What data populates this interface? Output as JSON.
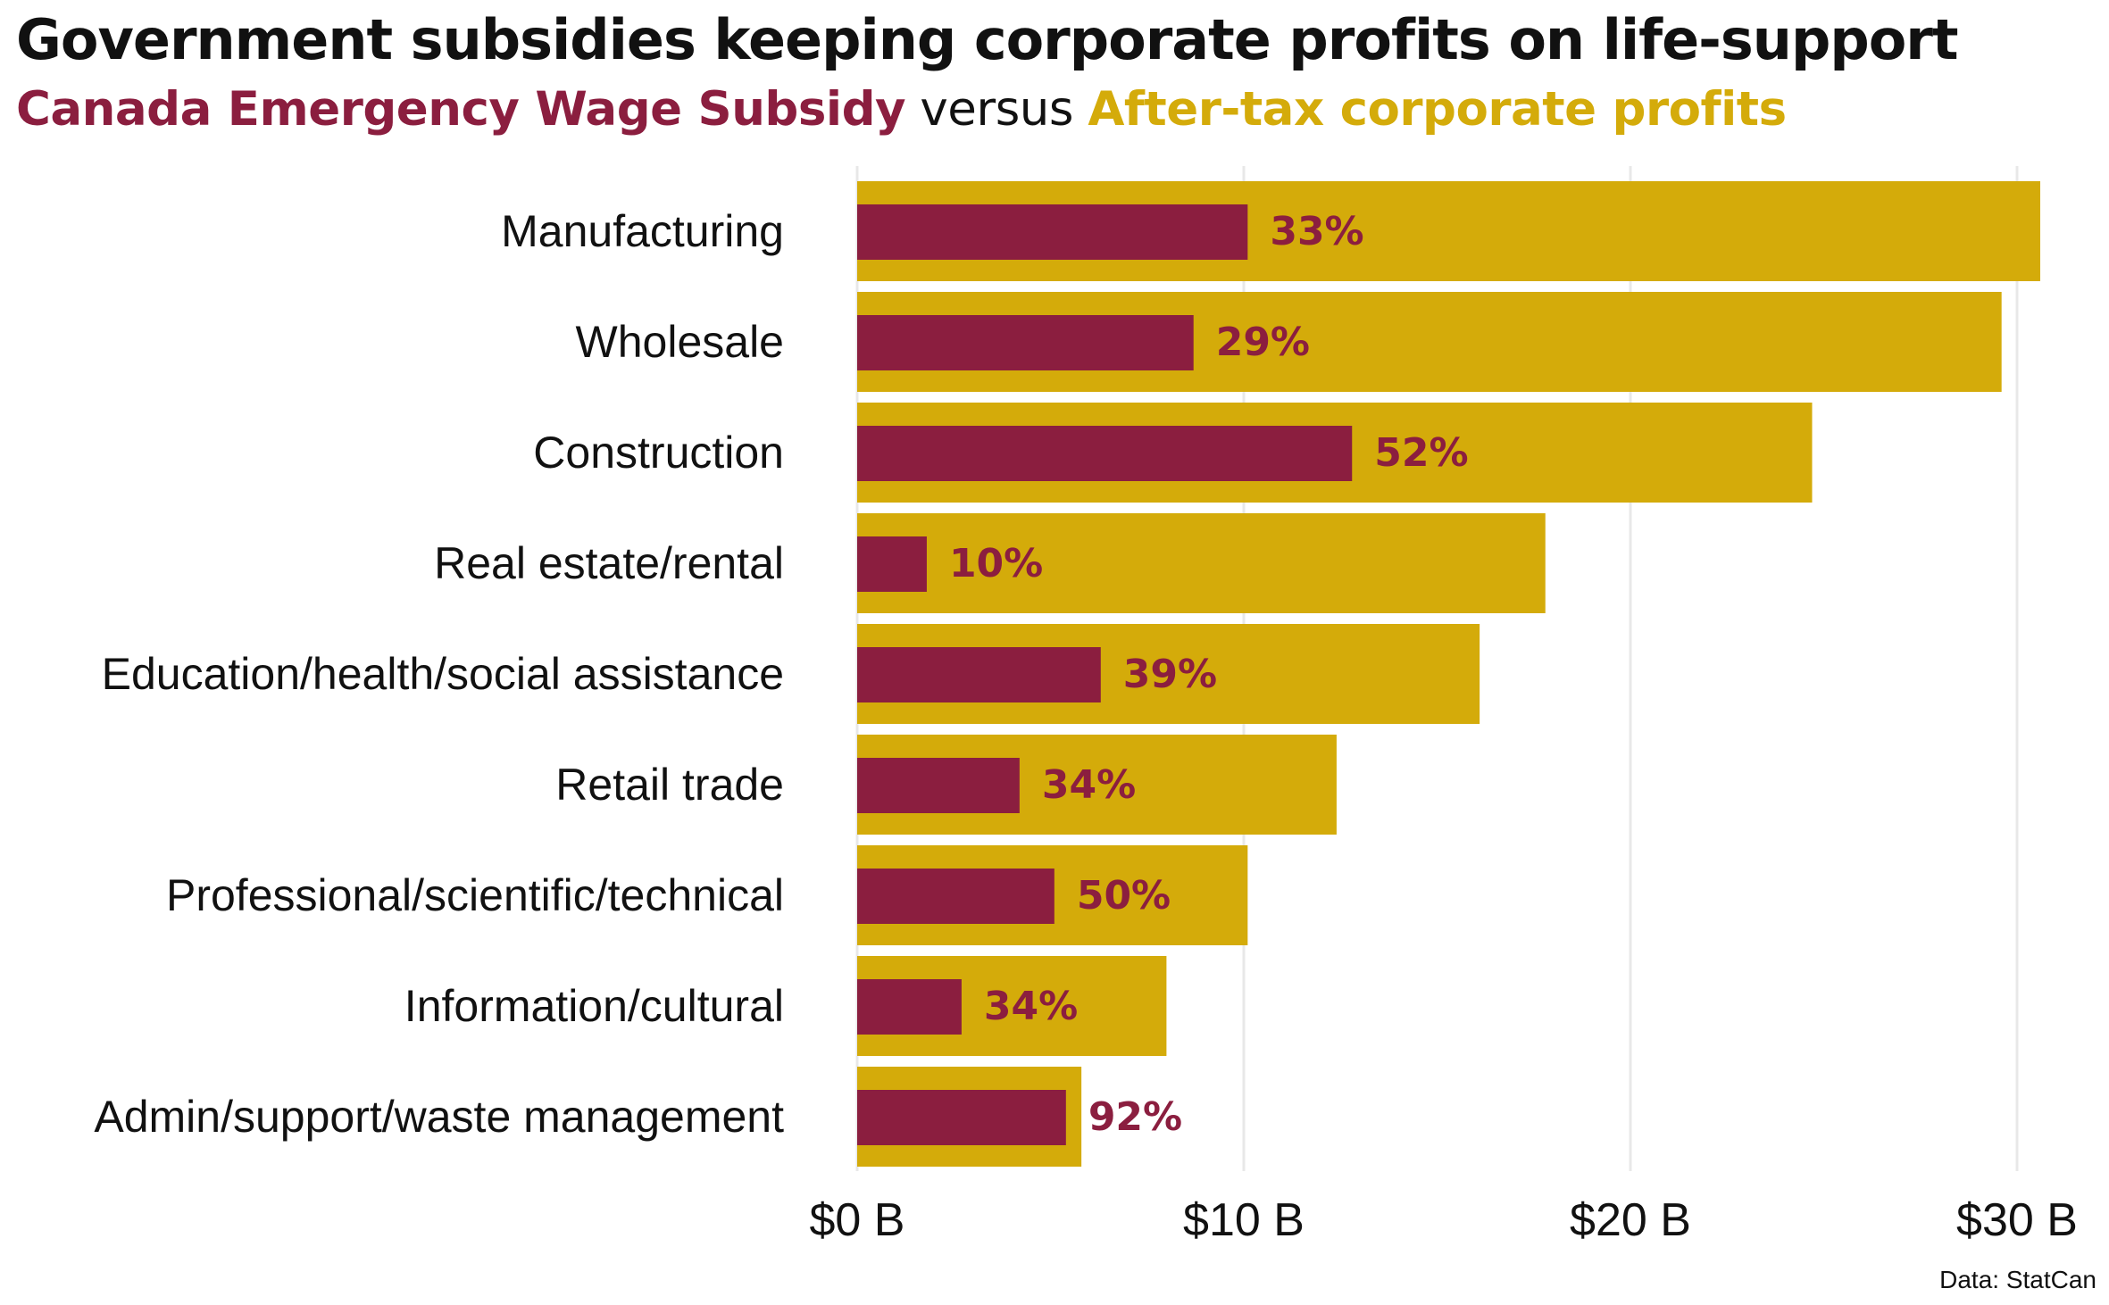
{
  "title": "Government subsidies keeping corporate profits on life-support",
  "subtitle": {
    "part1": "Canada Emergency Wage Subsidy",
    "part2": " versus ",
    "part3": "After-tax corporate profits"
  },
  "source": "Data: StatCan",
  "colors": {
    "subsidy": "#8b1e3f",
    "profits": "#d4ab0a",
    "grid": "#e8e8e8",
    "text": "#111111"
  },
  "chart_data": {
    "type": "bar",
    "orientation": "horizontal",
    "categories": [
      "Manufacturing",
      "Wholesale",
      "Construction",
      "Real estate/rental",
      "Education/health/social assistance",
      "Retail trade",
      "Professional/scientific/technical",
      "Information/cultural",
      "Admin/support/waste management"
    ],
    "series": [
      {
        "name": "After-tax corporate profits",
        "values": [
          30.6,
          29.6,
          24.7,
          17.8,
          16.1,
          12.4,
          10.1,
          8.0,
          5.8
        ]
      },
      {
        "name": "Canada Emergency Wage Subsidy",
        "values": [
          10.1,
          8.7,
          12.8,
          1.8,
          6.3,
          4.2,
          5.1,
          2.7,
          5.4
        ]
      }
    ],
    "data_labels": [
      "33%",
      "29%",
      "52%",
      "10%",
      "39%",
      "34%",
      "50%",
      "34%",
      "92%"
    ],
    "xlim": [
      0,
      31
    ],
    "xticks": [
      0,
      10,
      20,
      30
    ],
    "xtick_labels": [
      "$0 B",
      "$10 B",
      "$20 B",
      "$30 B"
    ],
    "grid": "vertical",
    "xlabel": "",
    "ylabel": ""
  }
}
